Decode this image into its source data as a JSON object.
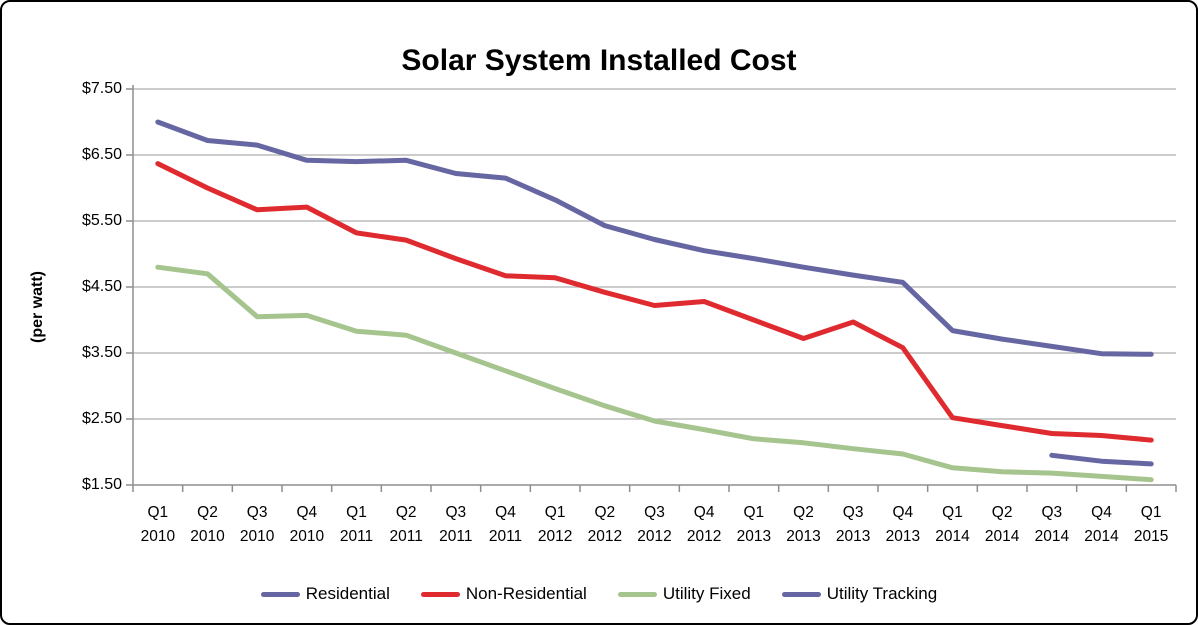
{
  "chart_data": {
    "type": "line",
    "title": "Solar System Installed Cost",
    "ylabel": "(per watt)",
    "xlabel": "",
    "ylim": [
      1.5,
      7.5
    ],
    "grid": true,
    "legend_position": "bottom",
    "line_width": 5,
    "colors": {
      "gridline": "#ADADAD",
      "axis": "#8E8E8E",
      "text": "#000000",
      "frame": "#000000"
    },
    "y_ticks": [
      {
        "value": 7.5,
        "label": "$7.50"
      },
      {
        "value": 6.5,
        "label": "$6.50"
      },
      {
        "value": 5.5,
        "label": "$5.50"
      },
      {
        "value": 4.5,
        "label": "$4.50"
      },
      {
        "value": 3.5,
        "label": "$3.50"
      },
      {
        "value": 2.5,
        "label": "$2.50"
      },
      {
        "value": 1.5,
        "label": "$1.50"
      }
    ],
    "categories": [
      {
        "quarter": "Q1",
        "year": "2010"
      },
      {
        "quarter": "Q2",
        "year": "2010"
      },
      {
        "quarter": "Q3",
        "year": "2010"
      },
      {
        "quarter": "Q4",
        "year": "2010"
      },
      {
        "quarter": "Q1",
        "year": "2011"
      },
      {
        "quarter": "Q2",
        "year": "2011"
      },
      {
        "quarter": "Q3",
        "year": "2011"
      },
      {
        "quarter": "Q4",
        "year": "2011"
      },
      {
        "quarter": "Q1",
        "year": "2012"
      },
      {
        "quarter": "Q2",
        "year": "2012"
      },
      {
        "quarter": "Q3",
        "year": "2012"
      },
      {
        "quarter": "Q4",
        "year": "2012"
      },
      {
        "quarter": "Q1",
        "year": "2013"
      },
      {
        "quarter": "Q2",
        "year": "2013"
      },
      {
        "quarter": "Q3",
        "year": "2013"
      },
      {
        "quarter": "Q4",
        "year": "2013"
      },
      {
        "quarter": "Q1",
        "year": "2014"
      },
      {
        "quarter": "Q2",
        "year": "2014"
      },
      {
        "quarter": "Q3",
        "year": "2014"
      },
      {
        "quarter": "Q4",
        "year": "2014"
      },
      {
        "quarter": "Q1",
        "year": "2015"
      }
    ],
    "series": [
      {
        "name": "Residential",
        "color": "#6666A3",
        "values": [
          7.0,
          6.72,
          6.65,
          6.42,
          6.4,
          6.42,
          6.22,
          6.15,
          5.82,
          5.43,
          5.22,
          5.05,
          4.93,
          4.8,
          4.68,
          4.57,
          3.84,
          3.71,
          3.6,
          3.49,
          3.48
        ]
      },
      {
        "name": "Non-Residential",
        "color": "#DF2B2F",
        "values": [
          6.37,
          6.0,
          5.67,
          5.71,
          5.32,
          5.21,
          4.93,
          4.67,
          4.64,
          4.42,
          4.22,
          4.28,
          4.0,
          3.72,
          3.97,
          3.58,
          2.52,
          2.4,
          2.28,
          2.25,
          2.18
        ]
      },
      {
        "name": "Utility Fixed",
        "color": "#A6C48E",
        "values": [
          4.8,
          4.7,
          4.05,
          4.07,
          3.83,
          3.77,
          3.5,
          3.23,
          2.96,
          2.7,
          2.47,
          2.34,
          2.2,
          2.14,
          2.05,
          1.97,
          1.76,
          1.7,
          1.68,
          1.63,
          1.58
        ]
      },
      {
        "name": "Utility Tracking",
        "color": "#6666A3",
        "values": [
          null,
          null,
          null,
          null,
          null,
          null,
          null,
          null,
          null,
          null,
          null,
          null,
          null,
          null,
          null,
          null,
          null,
          null,
          1.95,
          1.86,
          1.82
        ]
      }
    ]
  }
}
